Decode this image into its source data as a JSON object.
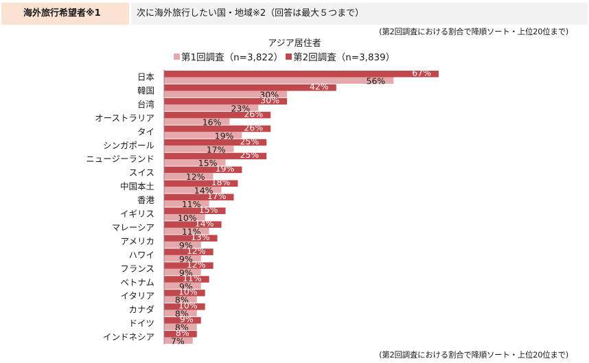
{
  "header": {
    "tag": "海外旅行希望者※1",
    "question": "次に海外旅行したい国・地域※2（回答は最大５つまで）"
  },
  "notes": {
    "top": "(第2回調査における割合で降順ソート・上位20位まで)",
    "bottom": "(第2回調査における割合で降順ソート・上位20位まで)"
  },
  "colors": {
    "series1": "#e6a9ab",
    "series2": "#c0474b"
  },
  "chart_data": {
    "type": "bar",
    "orientation": "horizontal",
    "subtitle": "アジア居住者",
    "categories": [
      "日本",
      "韓国",
      "台湾",
      "オーストラリア",
      "タイ",
      "シンガポール",
      "ニュージーランド",
      "スイス",
      "中国本土",
      "香港",
      "イギリス",
      "マレーシア",
      "アメリカ",
      "ハワイ",
      "フランス",
      "ベトナム",
      "イタリア",
      "カナダ",
      "ドイツ",
      "インドネシア"
    ],
    "series": [
      {
        "name": "第1回調査（n=3,822）",
        "values": [
          56,
          30,
          23,
          16,
          19,
          17,
          15,
          12,
          14,
          11,
          10,
          11,
          9,
          9,
          9,
          9,
          8,
          8,
          8,
          7
        ]
      },
      {
        "name": "第2回調査（n=3,839）",
        "values": [
          67,
          42,
          30,
          26,
          26,
          25,
          25,
          19,
          18,
          17,
          15,
          14,
          13,
          12,
          12,
          11,
          10,
          10,
          9,
          8
        ]
      }
    ],
    "value_suffix": "%",
    "legend_position": "top",
    "grid": false
  }
}
